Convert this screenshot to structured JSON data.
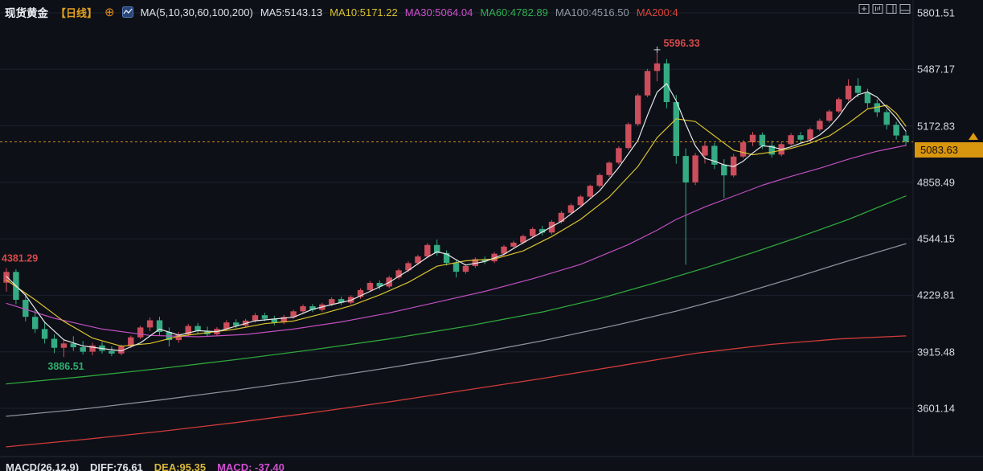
{
  "header": {
    "symbol": "现货黄金",
    "symbol_color": "#eef1f5",
    "period": "【日线】",
    "period_color": "#e2a11f",
    "ma_group_label": "MA(5,10,30,60,100,200)",
    "ma_group_color": "#dfe3e8",
    "ma_items": [
      {
        "label": "MA5:5143.13",
        "color": "#dfe3e8"
      },
      {
        "label": "MA10:5171.22",
        "color": "#d9c22e"
      },
      {
        "label": "MA30:5064.04",
        "color": "#cf4fcf"
      },
      {
        "label": "MA60:4782.89",
        "color": "#2fae4f"
      },
      {
        "label": "MA100:4516.50",
        "color": "#8f97a1"
      },
      {
        "label": "MA200:4",
        "color": "#d9453c"
      }
    ]
  },
  "icons": {
    "circle_plus_glyph": "⊕",
    "names": [
      "circle-plus-icon",
      "pattern-icon",
      "add-panel-icon",
      "kline-panel-icon",
      "split-right-icon",
      "split-bottom-icon",
      "latest-price-arrow-icon"
    ]
  },
  "price_tag": {
    "value": "5083.63",
    "bg": "#d8960f"
  },
  "macd": {
    "title": "MACD(26,12,9)",
    "title_color": "#dfe3e8",
    "diff": "DIFF:76.61",
    "diff_color": "#dfe3e8",
    "dea": "DEA:95.35",
    "dea_color": "#d9b83a",
    "macd": "MACD: -37.40",
    "macd_color": "#cf4fcf"
  },
  "chart_data": {
    "type": "candlestick",
    "title": "现货黄金 日线",
    "legend_position": "top",
    "grid": true,
    "price_axis": {
      "min": 3601.14,
      "max": 5801.51,
      "ticks": [
        5801.51,
        5487.17,
        5172.83,
        4858.49,
        4544.15,
        4229.81,
        3915.48,
        3601.14
      ]
    },
    "current_price": 5083.63,
    "current_price_color": "#cf8a1d",
    "up_color": "#cc4d5b",
    "down_color": "#35ab83",
    "high_annotation": {
      "index": 68,
      "value": 5596.33,
      "color": "#d64a49"
    },
    "left_annotation": {
      "index": 0,
      "value": 4381.29,
      "color": "#d64a49"
    },
    "low_annotation": {
      "index": 6,
      "value": 3886.51,
      "color": "#2fae6e"
    },
    "candles": [
      [
        4300,
        4381.29,
        4250,
        4360
      ],
      [
        4360,
        4375,
        4180,
        4205
      ],
      [
        4205,
        4240,
        4085,
        4110
      ],
      [
        4110,
        4150,
        4020,
        4042
      ],
      [
        4042,
        4080,
        3962,
        3988
      ],
      [
        3988,
        4012,
        3908,
        3938
      ],
      [
        3938,
        3982,
        3886.51,
        3962
      ],
      [
        3962,
        4002,
        3921,
        3941
      ],
      [
        3941,
        3976,
        3901,
        3916
      ],
      [
        3916,
        3966,
        3896,
        3951
      ],
      [
        3951,
        3971,
        3906,
        3921
      ],
      [
        3921,
        3946,
        3891,
        3906
      ],
      [
        3906,
        3956,
        3896,
        3946
      ],
      [
        3946,
        4006,
        3936,
        3996
      ],
      [
        3996,
        4061,
        3986,
        4051
      ],
      [
        4051,
        4106,
        4031,
        4091
      ],
      [
        4091,
        4111,
        4006,
        4026
      ],
      [
        4026,
        4051,
        3945,
        3981
      ],
      [
        3981,
        4026,
        3966,
        4013
      ],
      [
        4013,
        4071,
        4001,
        4059
      ],
      [
        4059,
        4076,
        4016,
        4031
      ],
      [
        4031,
        4056,
        3999,
        4013
      ],
      [
        4013,
        4053,
        4001,
        4043
      ],
      [
        4043,
        4091,
        4031,
        4079
      ],
      [
        4079,
        4096,
        4046,
        4061
      ],
      [
        4061,
        4099,
        4051,
        4089
      ],
      [
        4089,
        4131,
        4079,
        4119
      ],
      [
        4119,
        4133,
        4086,
        4099
      ],
      [
        4099,
        4116,
        4063,
        4079
      ],
      [
        4079,
        4121,
        4069,
        4109
      ],
      [
        4109,
        4151,
        4099,
        4141
      ],
      [
        4141,
        4179,
        4129,
        4169
      ],
      [
        4169,
        4181,
        4136,
        4149
      ],
      [
        4149,
        4189,
        4139,
        4179
      ],
      [
        4179,
        4219,
        4169,
        4209
      ],
      [
        4209,
        4223,
        4176,
        4189
      ],
      [
        4189,
        4231,
        4179,
        4221
      ],
      [
        4221,
        4269,
        4211,
        4259
      ],
      [
        4259,
        4309,
        4249,
        4299
      ],
      [
        4299,
        4313,
        4263,
        4279
      ],
      [
        4279,
        4339,
        4269,
        4329
      ],
      [
        4329,
        4379,
        4319,
        4369
      ],
      [
        4369,
        4419,
        4359,
        4409
      ],
      [
        4409,
        4456,
        4399,
        4446
      ],
      [
        4446,
        4520,
        4436,
        4510
      ],
      [
        4510,
        4540,
        4450,
        4465
      ],
      [
        4465,
        4480,
        4396,
        4410
      ],
      [
        4410,
        4426,
        4330,
        4361
      ],
      [
        4361,
        4403,
        4349,
        4393
      ],
      [
        4393,
        4441,
        4383,
        4431
      ],
      [
        4431,
        4446,
        4403,
        4419
      ],
      [
        4419,
        4471,
        4409,
        4461
      ],
      [
        4461,
        4511,
        4451,
        4501
      ],
      [
        4501,
        4533,
        4489,
        4523
      ],
      [
        4523,
        4569,
        4513,
        4559
      ],
      [
        4559,
        4609,
        4549,
        4599
      ],
      [
        4599,
        4616,
        4563,
        4579
      ],
      [
        4579,
        4649,
        4569,
        4639
      ],
      [
        4639,
        4699,
        4629,
        4689
      ],
      [
        4689,
        4741,
        4679,
        4731
      ],
      [
        4731,
        4789,
        4721,
        4779
      ],
      [
        4779,
        4846,
        4769,
        4839
      ],
      [
        4839,
        4909,
        4829,
        4899
      ],
      [
        4899,
        4976,
        4889,
        4968
      ],
      [
        4968,
        5059,
        4958,
        5049
      ],
      [
        5049,
        5192,
        5039,
        5182
      ],
      [
        5182,
        5352,
        5172,
        5342
      ],
      [
        5342,
        5490,
        5332,
        5478
      ],
      [
        5478,
        5596.33,
        5420,
        5520
      ],
      [
        5520,
        5545,
        5270,
        5305
      ],
      [
        5305,
        5345,
        4962,
        5005
      ],
      [
        5005,
        5048,
        4400,
        4858
      ],
      [
        4858,
        5022,
        4843,
        5008
      ],
      [
        5008,
        5082,
        4963,
        5062
      ],
      [
        5062,
        5077,
        4932,
        4957
      ],
      [
        4957,
        4987,
        4772,
        4897
      ],
      [
        4897,
        5017,
        4887,
        5002
      ],
      [
        5002,
        5093,
        4992,
        5081
      ],
      [
        5081,
        5139,
        5061,
        5123
      ],
      [
        5123,
        5136,
        5043,
        5063
      ],
      [
        5063,
        5091,
        4996,
        5013
      ],
      [
        5013,
        5083,
        5003,
        5071
      ],
      [
        5071,
        5133,
        5061,
        5121
      ],
      [
        5121,
        5139,
        5079,
        5096
      ],
      [
        5096,
        5163,
        5086,
        5153
      ],
      [
        5153,
        5213,
        5143,
        5201
      ],
      [
        5201,
        5263,
        5191,
        5253
      ],
      [
        5253,
        5331,
        5243,
        5321
      ],
      [
        5321,
        5432,
        5311,
        5396
      ],
      [
        5396,
        5439,
        5331,
        5356
      ],
      [
        5356,
        5379,
        5271,
        5299
      ],
      [
        5299,
        5319,
        5223,
        5249
      ],
      [
        5249,
        5263,
        5153,
        5179
      ],
      [
        5179,
        5196,
        5096,
        5119
      ],
      [
        5119,
        5141,
        5059,
        5083.63
      ]
    ],
    "ma_lines": [
      {
        "name": "MA200",
        "color": "#d23b3b",
        "width": 1.3,
        "points": [
          [
            0,
            3387
          ],
          [
            8,
            3427
          ],
          [
            16,
            3472
          ],
          [
            24,
            3522
          ],
          [
            32,
            3577
          ],
          [
            40,
            3637
          ],
          [
            48,
            3702
          ],
          [
            56,
            3767
          ],
          [
            64,
            3837
          ],
          [
            72,
            3907
          ],
          [
            80,
            3957
          ],
          [
            87,
            3987
          ],
          [
            94,
            4004
          ]
        ]
      },
      {
        "name": "MA100",
        "color": "#8a9099",
        "width": 1.3,
        "points": [
          [
            0,
            3557
          ],
          [
            8,
            3597
          ],
          [
            16,
            3647
          ],
          [
            24,
            3702
          ],
          [
            32,
            3762
          ],
          [
            40,
            3827
          ],
          [
            48,
            3897
          ],
          [
            56,
            3977
          ],
          [
            64,
            4067
          ],
          [
            70,
            4142
          ],
          [
            76,
            4227
          ],
          [
            82,
            4322
          ],
          [
            88,
            4422
          ],
          [
            94,
            4516.5
          ]
        ]
      },
      {
        "name": "MA60",
        "color": "#2fa53c",
        "width": 1.3,
        "points": [
          [
            0,
            3737
          ],
          [
            8,
            3777
          ],
          [
            16,
            3822
          ],
          [
            24,
            3872
          ],
          [
            32,
            3927
          ],
          [
            40,
            3987
          ],
          [
            48,
            4057
          ],
          [
            56,
            4137
          ],
          [
            62,
            4212
          ],
          [
            68,
            4302
          ],
          [
            73,
            4382
          ],
          [
            78,
            4467
          ],
          [
            83,
            4557
          ],
          [
            88,
            4652
          ],
          [
            94,
            4782.89
          ]
        ]
      },
      {
        "name": "MA30",
        "color": "#c04fc0",
        "width": 1.2,
        "points": [
          [
            0,
            4185
          ],
          [
            5,
            4102
          ],
          [
            10,
            4042
          ],
          [
            15,
            4007
          ],
          [
            20,
            3999
          ],
          [
            25,
            4012
          ],
          [
            30,
            4042
          ],
          [
            35,
            4082
          ],
          [
            40,
            4132
          ],
          [
            45,
            4192
          ],
          [
            50,
            4252
          ],
          [
            55,
            4322
          ],
          [
            60,
            4402
          ],
          [
            65,
            4512
          ],
          [
            68,
            4592
          ],
          [
            70,
            4652
          ],
          [
            73,
            4722
          ],
          [
            76,
            4782
          ],
          [
            79,
            4842
          ],
          [
            82,
            4892
          ],
          [
            85,
            4937
          ],
          [
            88,
            4987
          ],
          [
            91,
            5032
          ],
          [
            94,
            5064.04
          ]
        ]
      },
      {
        "name": "MA10",
        "color": "#d9c22e",
        "width": 1.2,
        "points": [
          [
            0,
            4315
          ],
          [
            3,
            4205
          ],
          [
            6,
            4085
          ],
          [
            9,
            3992
          ],
          [
            12,
            3947
          ],
          [
            15,
            3962
          ],
          [
            18,
            4002
          ],
          [
            21,
            4022
          ],
          [
            24,
            4042
          ],
          [
            27,
            4072
          ],
          [
            30,
            4087
          ],
          [
            33,
            4127
          ],
          [
            36,
            4172
          ],
          [
            39,
            4232
          ],
          [
            42,
            4302
          ],
          [
            45,
            4392
          ],
          [
            48,
            4422
          ],
          [
            51,
            4432
          ],
          [
            54,
            4477
          ],
          [
            57,
            4557
          ],
          [
            60,
            4652
          ],
          [
            63,
            4777
          ],
          [
            66,
            4947
          ],
          [
            68,
            5107
          ],
          [
            70,
            5212
          ],
          [
            72,
            5197
          ],
          [
            74,
            5117
          ],
          [
            76,
            5037
          ],
          [
            78,
            5012
          ],
          [
            80,
            5027
          ],
          [
            82,
            5047
          ],
          [
            84,
            5077
          ],
          [
            86,
            5117
          ],
          [
            88,
            5187
          ],
          [
            90,
            5267
          ],
          [
            92,
            5287
          ],
          [
            93,
            5242
          ],
          [
            94,
            5171.22
          ]
        ]
      },
      {
        "name": "MA5",
        "color": "#e6e8ea",
        "width": 1.2,
        "points": [
          [
            0,
            4335
          ],
          [
            2,
            4230
          ],
          [
            4,
            4080
          ],
          [
            6,
            3982
          ],
          [
            8,
            3948
          ],
          [
            10,
            3934
          ],
          [
            12,
            3921
          ],
          [
            14,
            3965
          ],
          [
            16,
            4042
          ],
          [
            18,
            4008
          ],
          [
            20,
            4033
          ],
          [
            22,
            4028
          ],
          [
            24,
            4058
          ],
          [
            26,
            4088
          ],
          [
            28,
            4098
          ],
          [
            30,
            4108
          ],
          [
            32,
            4152
          ],
          [
            34,
            4178
          ],
          [
            36,
            4202
          ],
          [
            38,
            4252
          ],
          [
            40,
            4302
          ],
          [
            42,
            4368
          ],
          [
            44,
            4442
          ],
          [
            45,
            4472
          ],
          [
            46,
            4460
          ],
          [
            47,
            4428
          ],
          [
            48,
            4398
          ],
          [
            50,
            4418
          ],
          [
            52,
            4458
          ],
          [
            54,
            4522
          ],
          [
            56,
            4582
          ],
          [
            58,
            4642
          ],
          [
            60,
            4722
          ],
          [
            62,
            4812
          ],
          [
            64,
            4942
          ],
          [
            66,
            5092
          ],
          [
            67,
            5232
          ],
          [
            68,
            5360
          ],
          [
            69,
            5408
          ],
          [
            70,
            5312
          ],
          [
            71,
            5182
          ],
          [
            72,
            5062
          ],
          [
            73,
            4992
          ],
          [
            74,
            4976
          ],
          [
            75,
            4956
          ],
          [
            76,
            4946
          ],
          [
            77,
            4976
          ],
          [
            78,
            5022
          ],
          [
            79,
            5062
          ],
          [
            80,
            5056
          ],
          [
            81,
            5042
          ],
          [
            82,
            5056
          ],
          [
            83,
            5076
          ],
          [
            84,
            5092
          ],
          [
            85,
            5122
          ],
          [
            86,
            5166
          ],
          [
            87,
            5226
          ],
          [
            88,
            5302
          ],
          [
            89,
            5346
          ],
          [
            90,
            5362
          ],
          [
            91,
            5332
          ],
          [
            92,
            5276
          ],
          [
            93,
            5216
          ],
          [
            94,
            5143.13
          ]
        ]
      }
    ]
  }
}
